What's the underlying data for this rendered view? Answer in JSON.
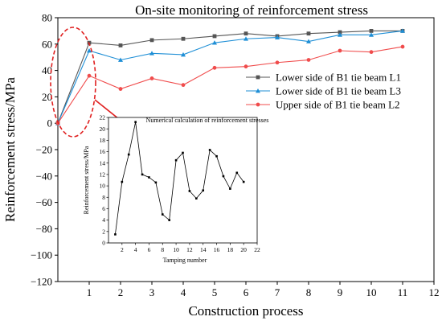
{
  "chart_data": [
    {
      "type": "line",
      "title": "On-site monitoring of reinforcement stress",
      "xlabel": "Construction process",
      "ylabel": "Reinforcement stress/MPa",
      "xlim": [
        0,
        12
      ],
      "ylim": [
        -120,
        80
      ],
      "x_ticks": [
        "1",
        "2",
        "3",
        "4",
        "5",
        "6",
        "7",
        "8",
        "9",
        "10",
        "11",
        "12"
      ],
      "y_ticks": [
        "80",
        "60",
        "40",
        "20",
        "0",
        "−20",
        "−40",
        "−60",
        "−80",
        "−100",
        "−120"
      ],
      "legend_position": "right",
      "series": [
        {
          "name": "Lower side of B1 tie beam L1",
          "color": "#555555",
          "marker": "square",
          "x": [
            0,
            1,
            2,
            3,
            4,
            5,
            6,
            7,
            8,
            9,
            10,
            11
          ],
          "y": [
            0,
            61,
            59,
            63,
            64,
            66,
            68,
            66,
            68,
            69,
            70,
            70
          ]
        },
        {
          "name": "Lower side of B1 tie beam L3",
          "color": "#1f8fd6",
          "marker": "triangle",
          "x": [
            0,
            1,
            2,
            3,
            4,
            5,
            6,
            7,
            8,
            9,
            10,
            11
          ],
          "y": [
            0,
            55,
            48,
            53,
            52,
            61,
            64,
            65,
            62,
            67,
            67,
            70
          ]
        },
        {
          "name": "Upper side of B1 tie beam L2",
          "color": "#f04c4c",
          "marker": "circle",
          "x": [
            0,
            1,
            2,
            3,
            4,
            5,
            6,
            7,
            8,
            9,
            10,
            11
          ],
          "y": [
            0,
            36,
            26,
            34,
            29,
            42,
            43,
            46,
            48,
            55,
            54,
            58
          ]
        }
      ],
      "annotation": {
        "highlight_color": "#e02020",
        "highlight_shape": "dashed ellipse around x = 1"
      }
    },
    {
      "type": "line",
      "title": "Numerical calculation of reinforcement stresses",
      "xlabel": "Tamping number",
      "ylabel": "Reinforcement stress/MPa",
      "xlim": [
        0,
        22
      ],
      "ylim": [
        0,
        22
      ],
      "x_ticks": [
        "2",
        "4",
        "6",
        "8",
        "10",
        "12",
        "14",
        "16",
        "18",
        "20",
        "22"
      ],
      "y_ticks": [
        "0",
        "2",
        "4",
        "6",
        "8",
        "10",
        "12",
        "14",
        "16",
        "18",
        "20",
        "22"
      ],
      "series": [
        {
          "color": "#000000",
          "marker": "square",
          "x": [
            1,
            2,
            3,
            4,
            5,
            6,
            7,
            8,
            9,
            10,
            11,
            12,
            13,
            14,
            15,
            16,
            17,
            18,
            19,
            20
          ],
          "y": [
            1.5,
            10.7,
            15.5,
            21.2,
            12.0,
            11.5,
            10.6,
            5.0,
            4.0,
            14.5,
            15.8,
            9.1,
            7.8,
            9.2,
            16.3,
            15.2,
            11.7,
            9.5,
            12.3,
            10.7
          ]
        }
      ]
    }
  ]
}
